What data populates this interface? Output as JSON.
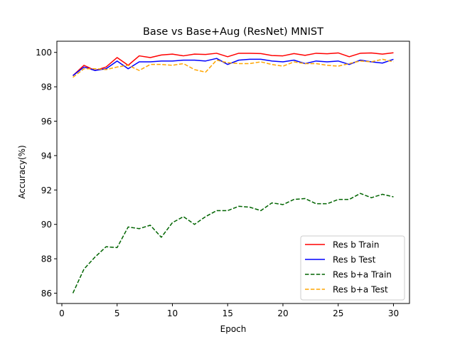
{
  "chart_data": {
    "type": "line",
    "title": "Base vs Base+Aug (ResNet) MNIST",
    "xlabel": "Epoch",
    "ylabel": "Accuracy(%)",
    "xlim": [
      -0.45,
      31.45
    ],
    "ylim": [
      85.4,
      100.65
    ],
    "xticks": [
      0,
      5,
      10,
      15,
      20,
      25,
      30
    ],
    "yticks": [
      86,
      88,
      90,
      92,
      94,
      96,
      98,
      100
    ],
    "grid": false,
    "legend_position": "lower-right",
    "x": [
      1,
      2,
      3,
      4,
      5,
      6,
      7,
      8,
      9,
      10,
      11,
      12,
      13,
      14,
      15,
      16,
      17,
      18,
      19,
      20,
      21,
      22,
      23,
      24,
      25,
      26,
      27,
      28,
      29,
      30
    ],
    "series": [
      {
        "name": "Res b Train",
        "color": "#ff0000",
        "style": "solid",
        "values": [
          98.65,
          99.25,
          98.95,
          99.15,
          99.7,
          99.25,
          99.8,
          99.7,
          99.85,
          99.9,
          99.8,
          99.9,
          99.88,
          99.95,
          99.75,
          99.95,
          99.95,
          99.93,
          99.82,
          99.8,
          99.93,
          99.83,
          99.95,
          99.92,
          99.97,
          99.75,
          99.95,
          99.97,
          99.9,
          99.98
        ]
      },
      {
        "name": "Res b Test",
        "color": "#0000ff",
        "style": "solid",
        "values": [
          98.65,
          99.15,
          98.95,
          99.05,
          99.5,
          99.05,
          99.45,
          99.45,
          99.5,
          99.5,
          99.55,
          99.55,
          99.5,
          99.65,
          99.3,
          99.55,
          99.6,
          99.6,
          99.5,
          99.45,
          99.55,
          99.35,
          99.5,
          99.45,
          99.5,
          99.3,
          99.55,
          99.45,
          99.38,
          99.6
        ]
      },
      {
        "name": "Res b+a Train",
        "color": "#006400",
        "style": "dashed",
        "values": [
          86.0,
          87.4,
          88.1,
          88.7,
          88.65,
          89.85,
          89.75,
          89.95,
          89.25,
          90.1,
          90.45,
          90.0,
          90.45,
          90.8,
          90.8,
          91.05,
          91.0,
          90.8,
          91.25,
          91.15,
          91.45,
          91.5,
          91.2,
          91.2,
          91.45,
          91.45,
          91.8,
          91.55,
          91.75,
          91.6
        ]
      },
      {
        "name": "Res b+a Test",
        "color": "#ffa500",
        "style": "dashed",
        "values": [
          98.55,
          99.05,
          99.05,
          99.0,
          99.15,
          99.25,
          98.95,
          99.3,
          99.3,
          99.25,
          99.35,
          99.0,
          98.85,
          99.55,
          99.4,
          99.35,
          99.35,
          99.45,
          99.3,
          99.2,
          99.45,
          99.35,
          99.35,
          99.25,
          99.2,
          99.35,
          99.5,
          99.45,
          99.6,
          99.45
        ]
      }
    ]
  }
}
